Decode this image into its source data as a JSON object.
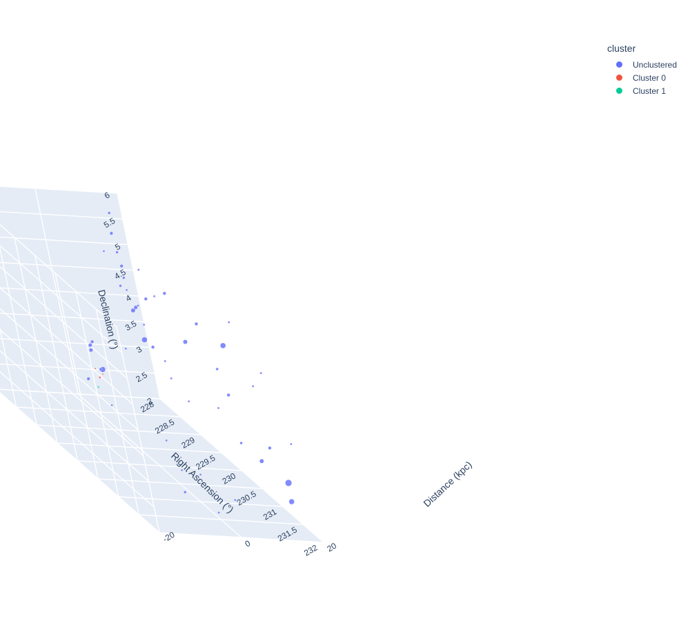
{
  "chart_data": {
    "type": "scatter3d",
    "axes": {
      "x": {
        "label": "Right Ascension (°)",
        "range": [
          228,
          232
        ],
        "ticks": [
          "228",
          "228.5",
          "229",
          "229.5",
          "230",
          "230.5",
          "231",
          "231.5",
          "232"
        ]
      },
      "y": {
        "label": "Distance (kpc)",
        "range": [
          -20,
          20
        ],
        "ticks": [
          "-20",
          "0",
          "20"
        ]
      },
      "z": {
        "label": "Declination (°)",
        "range": [
          2,
          6
        ],
        "ticks": [
          "2",
          "2.5",
          "3",
          "3.5",
          "4",
          "4.5",
          "5",
          "5.5",
          "6"
        ]
      }
    },
    "legend": {
      "title": "cluster",
      "placement": "top-right",
      "items": [
        {
          "name": "Unclustered",
          "color": "#636efa"
        },
        {
          "name": "Cluster 0",
          "color": "#EF553B"
        },
        {
          "name": "Cluster 1",
          "color": "#00cc96"
        }
      ]
    },
    "series": [
      {
        "name": "Unclustered",
        "color": "#636efa",
        "points": [
          [
            228.3,
            14.5,
            5.8,
            2.5
          ],
          [
            228.3,
            14.0,
            5.4,
            3
          ],
          [
            228.4,
            13.6,
            5.1,
            2.5
          ],
          [
            228.5,
            13.2,
            4.9,
            3
          ],
          [
            228.6,
            12.4,
            4.5,
            2
          ],
          [
            228.8,
            12.1,
            4.3,
            3.5
          ],
          [
            229.0,
            11.6,
            4.1,
            2
          ],
          [
            229.2,
            11.0,
            3.8,
            3
          ],
          [
            229.0,
            9.0,
            5.0,
            2.5
          ],
          [
            229.2,
            8.0,
            4.5,
            4
          ],
          [
            229.5,
            7.0,
            4.8,
            2
          ],
          [
            229.6,
            6.0,
            4.2,
            5
          ],
          [
            229.8,
            9.0,
            5.2,
            2
          ],
          [
            229.9,
            7.5,
            4.0,
            2
          ],
          [
            230.0,
            10.0,
            5.4,
            3
          ],
          [
            230.1,
            6.5,
            3.8,
            2
          ],
          [
            230.2,
            11.0,
            4.6,
            4
          ],
          [
            230.3,
            8.0,
            3.5,
            2
          ],
          [
            230.4,
            13.0,
            5.1,
            3
          ],
          [
            230.5,
            15.0,
            4.3,
            2.5
          ],
          [
            230.6,
            12.5,
            3.6,
            2
          ],
          [
            230.7,
            16.0,
            4.9,
            5
          ],
          [
            230.8,
            14.0,
            4.0,
            3
          ],
          [
            230.9,
            17.0,
            5.5,
            2
          ],
          [
            231.0,
            13.0,
            3.2,
            2.5
          ],
          [
            231.1,
            18.0,
            4.4,
            2
          ],
          [
            231.2,
            15.5,
            3.0,
            4
          ],
          [
            231.3,
            19.0,
            4.8,
            2
          ],
          [
            231.4,
            16.5,
            3.4,
            3
          ],
          [
            231.5,
            18.5,
            2.8,
            6
          ],
          [
            231.6,
            17.5,
            2.5,
            5
          ],
          [
            231.7,
            19.5,
            3.7,
            2
          ],
          [
            229.3,
            3.0,
            5.7,
            2
          ],
          [
            229.7,
            2.0,
            5.3,
            2.5
          ],
          [
            230.1,
            4.0,
            5.9,
            2
          ],
          [
            230.5,
            1.0,
            5.6,
            3
          ],
          [
            229.4,
            -6.0,
            3.9,
            3.5
          ],
          [
            229.5,
            -5.0,
            3.5,
            5
          ],
          [
            229.6,
            -7.0,
            4.1,
            3
          ],
          [
            229.8,
            -8.0,
            3.7,
            2.5
          ],
          [
            229.5,
            -9.0,
            3.3,
            3
          ],
          [
            230.2,
            -4.0,
            4.4,
            2
          ],
          [
            230.0,
            -11.0,
            4.2,
            3.5
          ],
          [
            230.4,
            -12.0,
            3.4,
            2
          ],
          [
            230.6,
            -2.0,
            2.9,
            2
          ],
          [
            231.0,
            -3.0,
            2.6,
            2
          ],
          [
            231.2,
            -5.0,
            2.3,
            2.5
          ],
          [
            230.8,
            3.0,
            2.4,
            2
          ],
          [
            231.6,
            -1.0,
            2.2,
            2
          ],
          [
            231.8,
            2.0,
            2.6,
            2
          ]
        ]
      },
      {
        "name": "Cluster 0",
        "color": "#EF553B",
        "points": [
          [
            228.15,
            5.0,
            2.45,
            2
          ],
          [
            228.2,
            5.5,
            2.55,
            1.5
          ],
          [
            228.12,
            4.6,
            2.6,
            1.5
          ]
        ]
      },
      {
        "name": "Cluster 1",
        "color": "#00cc96",
        "points": [
          [
            228.3,
            3.0,
            2.35,
            1.5
          ],
          [
            228.35,
            2.5,
            2.4,
            1.5
          ]
        ]
      }
    ]
  }
}
